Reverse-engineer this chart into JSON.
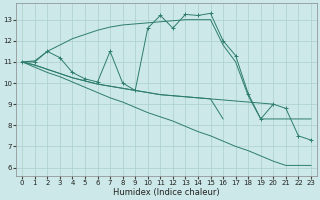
{
  "xlabel": "Humidex (Indice chaleur)",
  "bg_color": "#cce8e8",
  "line_color": "#2e7d6e",
  "grid_color": "#aad0cc",
  "yticks": [
    6,
    7,
    8,
    9,
    10,
    11,
    12,
    13
  ],
  "xticks": [
    0,
    1,
    2,
    3,
    4,
    5,
    6,
    7,
    8,
    9,
    10,
    11,
    12,
    13,
    14,
    15,
    16,
    17,
    18,
    19,
    20,
    21,
    22,
    23
  ],
  "xlim": [
    -0.5,
    23.5
  ],
  "ylim": [
    5.6,
    13.8
  ],
  "main_y": [
    11.0,
    11.0,
    11.5,
    11.2,
    10.5,
    10.2,
    10.05,
    11.5,
    10.0,
    9.65,
    12.6,
    13.2,
    12.6,
    13.25,
    13.2,
    13.3,
    12.0,
    11.3,
    9.5,
    8.3,
    9.0,
    8.8,
    7.5,
    7.3
  ],
  "upper_y": [
    11.0,
    11.05,
    11.5,
    11.8,
    12.1,
    12.3,
    12.5,
    12.65,
    12.75,
    12.8,
    12.85,
    12.9,
    12.95,
    13.0,
    13.0,
    13.0,
    11.8,
    11.0,
    9.4,
    8.3,
    8.3,
    8.3,
    8.3,
    8.3
  ],
  "lower_y": [
    11.0,
    10.75,
    10.5,
    10.3,
    10.05,
    9.8,
    9.55,
    9.3,
    9.1,
    8.85,
    8.6,
    8.4,
    8.2,
    7.95,
    7.7,
    7.5,
    7.25,
    7.0,
    6.8,
    6.55,
    6.3,
    6.1,
    6.1,
    6.1
  ],
  "mid1_x": [
    0,
    1,
    2,
    3,
    4,
    5,
    6,
    7,
    8,
    9,
    10,
    11,
    12,
    13,
    14,
    15,
    16
  ],
  "mid1_y": [
    11.0,
    10.85,
    10.65,
    10.45,
    10.25,
    10.1,
    9.95,
    9.85,
    9.75,
    9.65,
    9.55,
    9.45,
    9.4,
    9.35,
    9.3,
    9.25,
    8.3
  ],
  "mid2_x": [
    0,
    1,
    2,
    3,
    4,
    5,
    6,
    7,
    8,
    9,
    10,
    11,
    12,
    13,
    14,
    15,
    16,
    17,
    18,
    19,
    20
  ],
  "mid2_y": [
    11.0,
    10.85,
    10.65,
    10.45,
    10.25,
    10.1,
    9.95,
    9.85,
    9.75,
    9.65,
    9.55,
    9.45,
    9.4,
    9.35,
    9.3,
    9.25,
    9.2,
    9.15,
    9.1,
    9.05,
    9.0
  ]
}
